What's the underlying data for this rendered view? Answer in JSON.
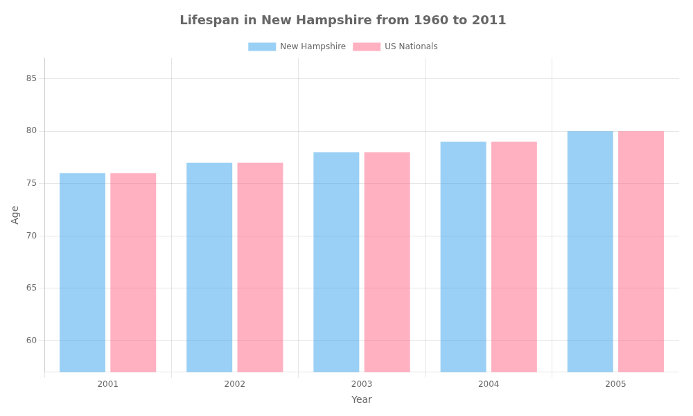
{
  "chart_data": {
    "type": "bar",
    "title": "Lifespan in New Hampshire from 1960 to 2011",
    "xlabel": "Year",
    "ylabel": "Age",
    "categories": [
      "2001",
      "2002",
      "2003",
      "2004",
      "2005"
    ],
    "series": [
      {
        "name": "New Hampshire",
        "values": [
          76,
          77,
          78,
          79,
          80
        ]
      },
      {
        "name": "US Nationals",
        "values": [
          76,
          77,
          78,
          79,
          80
        ]
      }
    ],
    "ylim": [
      57,
      87
    ],
    "yticks": [
      60,
      65,
      70,
      75,
      80,
      85
    ],
    "grid": true,
    "legend": "top"
  }
}
